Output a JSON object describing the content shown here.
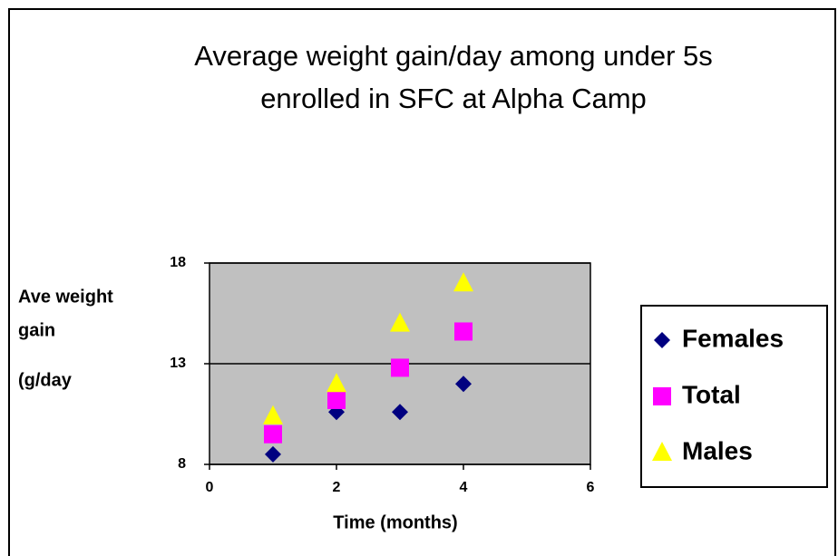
{
  "chart_data": {
    "type": "scatter",
    "title": "Average weight gain/day among under 5s enrolled in SFC at Alpha Camp",
    "xlabel": "Time (months)",
    "ylabel_lines": [
      "Ave weight",
      "gain",
      "(g/day"
    ],
    "x": [
      1,
      2,
      3,
      4
    ],
    "series": [
      {
        "name": "Females",
        "color": "#000080",
        "marker": "diamond",
        "values": [
          8.5,
          10.6,
          10.6,
          12
        ]
      },
      {
        "name": "Total",
        "color": "#ff00ff",
        "marker": "square",
        "values": [
          9.5,
          11.2,
          12.8,
          14.6
        ]
      },
      {
        "name": "Males",
        "color": "#ffff00",
        "marker": "triangle",
        "values": [
          10.4,
          12,
          15,
          17
        ]
      }
    ],
    "xlim": [
      0,
      6
    ],
    "xticks": [
      0,
      2,
      4,
      6
    ],
    "ylim": [
      8,
      18
    ],
    "yticks": [
      8,
      13,
      18
    ],
    "grid": true,
    "legend": "right"
  }
}
